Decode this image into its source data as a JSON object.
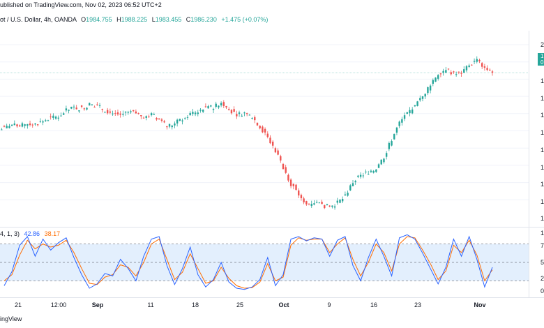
{
  "header": {
    "published": "ublished on TradingView.com, Nov 02, 2023 06:52 UTC+2",
    "symbol": "ot / U.S. Dollar, 4h, OANDA",
    "open_label": "O",
    "open": "1984.755",
    "high_label": "H",
    "high": "1988.225",
    "low_label": "L",
    "low": "1983.455",
    "close_label": "C",
    "close": "1986.230",
    "change": "+1.475 (+0.07%)"
  },
  "price_axis": {
    "labels": [
      "2",
      "1",
      "1",
      "1",
      "1",
      "1",
      "1",
      "1",
      "1",
      "1"
    ],
    "badge": "1 0"
  },
  "oscillator": {
    "params": "4, 1, 3)",
    "k_value": "42.86",
    "d_value": "38.17",
    "axis_labels": [
      "1",
      "7",
      "5",
      "2",
      "0"
    ]
  },
  "time_axis": {
    "labels": [
      "21",
      "12:00",
      "Sep",
      "11",
      "18",
      "25",
      "Oct",
      "9",
      "16",
      "23",
      "Nov"
    ]
  },
  "footer": {
    "brand": "ingView"
  },
  "colors": {
    "up": "#26a69a",
    "down": "#ef5350",
    "k_line": "#2962ff",
    "d_line": "#ff6d00",
    "band": "#e3effd"
  },
  "chart_data": {
    "type": "candlestick",
    "series": [
      {
        "name": "price",
        "values": [
          1916,
          1920,
          1918,
          1922,
          1921,
          1925,
          1929,
          1931,
          1938,
          1942,
          1941,
          1946,
          1944,
          1939,
          1935,
          1933,
          1936,
          1935,
          1929,
          1933,
          1927,
          1918,
          1922,
          1928,
          1934,
          1938,
          1941,
          1943,
          1949,
          1939,
          1934,
          1935,
          1930,
          1918,
          1904,
          1888,
          1867,
          1846,
          1832,
          1821,
          1823,
          1819,
          1817,
          1822,
          1831,
          1848,
          1856,
          1861,
          1866,
          1880,
          1902,
          1923,
          1935,
          1944,
          1956,
          1972,
          1985,
          1991,
          1984,
          1986,
          1996,
          2002,
          1992,
          1986
        ]
      },
      {
        "name": "stoch_k",
        "values": [
          12,
          35,
          78,
          92,
          60,
          88,
          70,
          82,
          90,
          58,
          30,
          8,
          15,
          32,
          28,
          55,
          40,
          20,
          60,
          88,
          92,
          45,
          14,
          40,
          75,
          30,
          10,
          22,
          50,
          18,
          8,
          6,
          10,
          22,
          58,
          12,
          30,
          88,
          92,
          85,
          90,
          88,
          60,
          86,
          92,
          45,
          20,
          58,
          88,
          60,
          28,
          90,
          95,
          88,
          65,
          40,
          15,
          42,
          88,
          60,
          92,
          55,
          10,
          42
        ]
      },
      {
        "name": "stoch_d",
        "values": [
          20,
          30,
          62,
          86,
          72,
          80,
          75,
          78,
          86,
          66,
          40,
          16,
          14,
          26,
          30,
          46,
          42,
          28,
          50,
          80,
          88,
          55,
          22,
          34,
          64,
          40,
          16,
          20,
          42,
          24,
          12,
          8,
          9,
          18,
          48,
          20,
          26,
          78,
          90,
          86,
          88,
          88,
          66,
          80,
          90,
          55,
          28,
          50,
          80,
          66,
          36,
          80,
          92,
          90,
          70,
          48,
          22,
          36,
          78,
          66,
          86,
          62,
          20,
          38
        ]
      }
    ],
    "ylim_stoch": [
      0,
      100
    ],
    "stoch_levels": [
      80,
      50,
      20
    ]
  }
}
